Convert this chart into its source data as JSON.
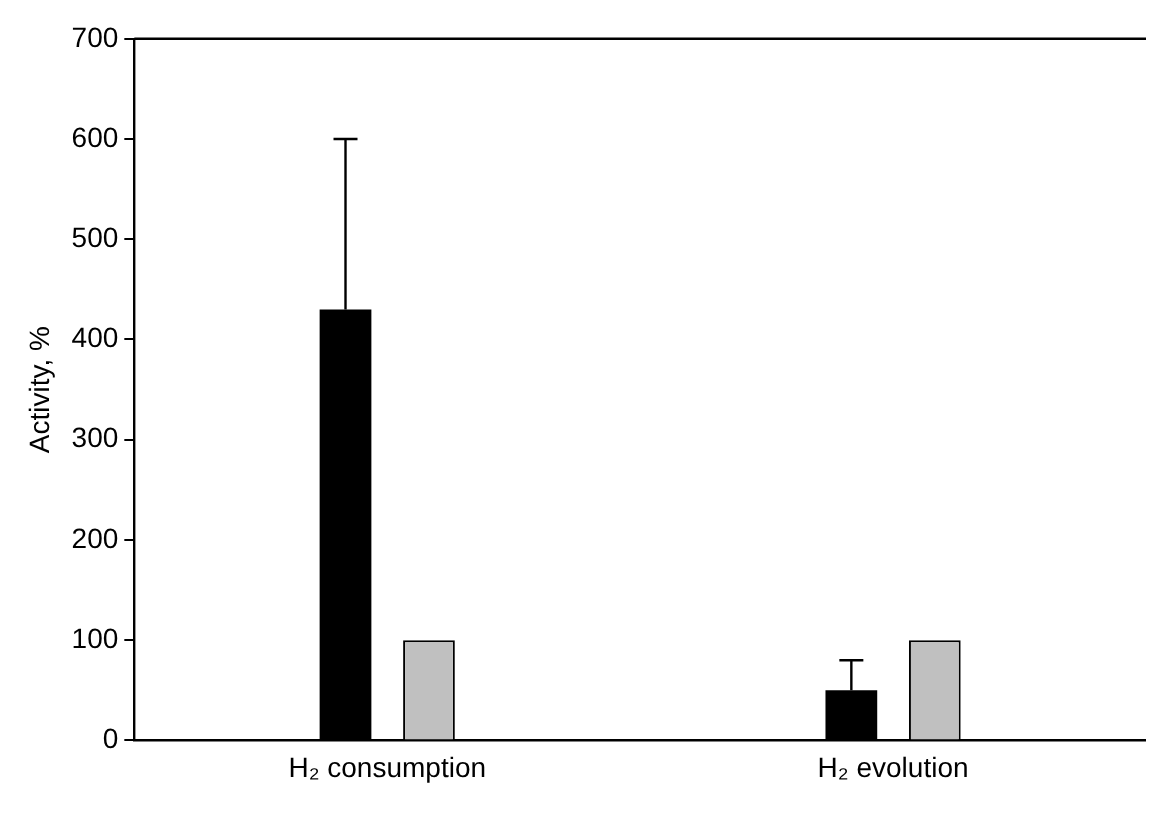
{
  "chart_data": {
    "type": "bar",
    "ylabel": "Activity, %",
    "categories": [
      "H₂ consumption",
      "H₂ evolution"
    ],
    "series": [
      {
        "color": "#000000",
        "values": [
          430,
          50
        ],
        "errors": [
          [
            430,
            600
          ],
          [
            50,
            80
          ]
        ]
      },
      {
        "color": "#c0c0c0",
        "values": [
          100,
          100
        ],
        "errors": [
          null,
          null
        ]
      }
    ],
    "ylim": [
      0,
      700
    ],
    "yticks": [
      0,
      100,
      200,
      300,
      400,
      500,
      600,
      700
    ],
    "grid": false,
    "legend": false
  }
}
